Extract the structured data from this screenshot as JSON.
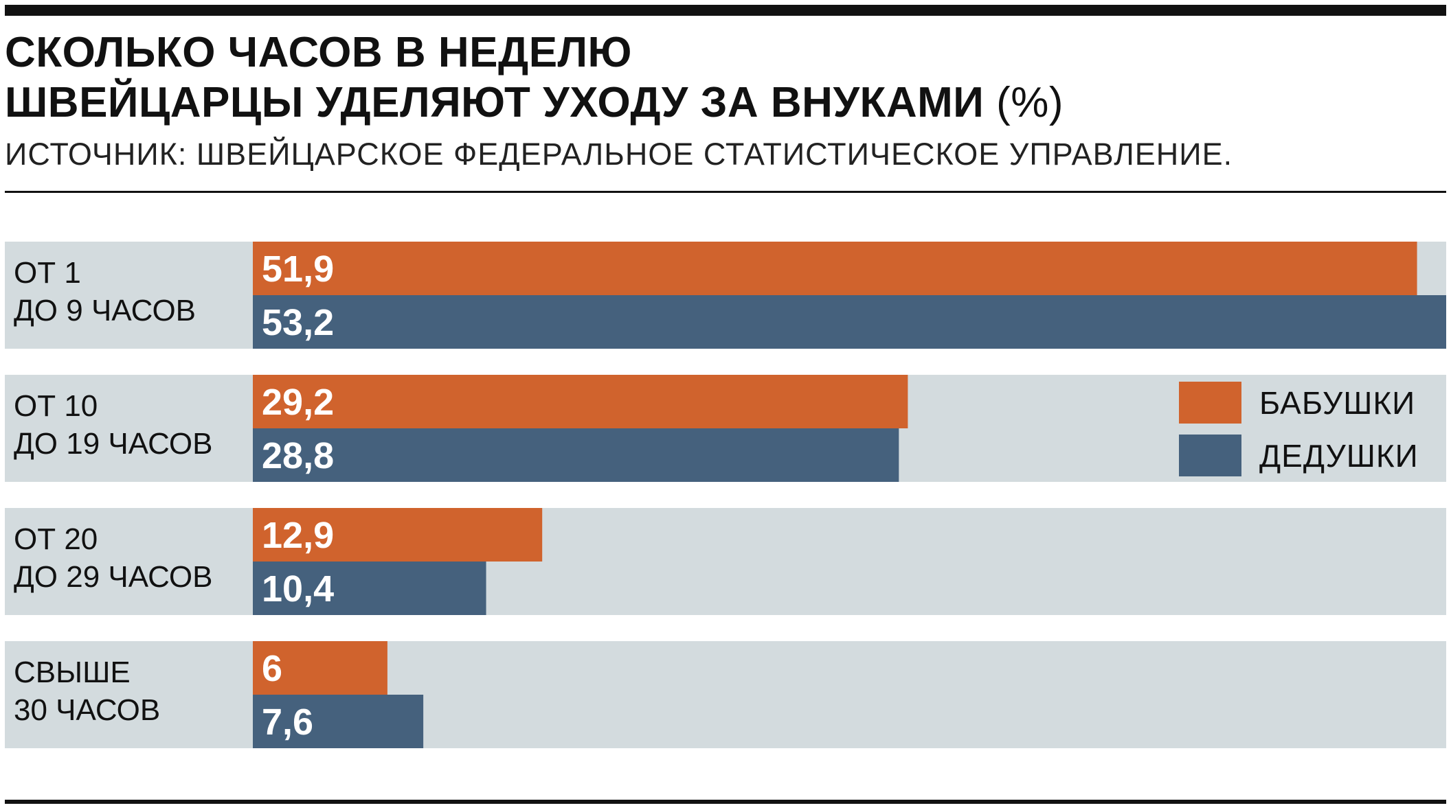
{
  "chart_data": {
    "type": "bar",
    "orientation": "horizontal",
    "title": {
      "line1": "СКОЛЬКО ЧАСОВ В НЕДЕЛЮ",
      "line2": "ШВЕЙЦАРЦЫ УДЕЛЯЮТ УХОДУ ЗА ВНУКАМИ",
      "unit": "(%)"
    },
    "source": "ИСТОЧНИК: ШВЕЙЦАРСКОЕ ФЕДЕРАЛЬНОЕ СТАТИСТИЧЕСКОЕ УПРАВЛЕНИЕ.",
    "categories": [
      [
        "ОТ 1",
        "ДО 9 ЧАСОВ"
      ],
      [
        "ОТ 10",
        "ДО 19 ЧАСОВ"
      ],
      [
        "ОТ 20",
        "ДО 29 ЧАСОВ"
      ],
      [
        "СВЫШЕ",
        "30 ЧАСОВ"
      ]
    ],
    "series": [
      {
        "name": "БАБУШКИ",
        "color": "#d0632d",
        "values": [
          51.9,
          29.2,
          12.9,
          6
        ],
        "labels": [
          "51,9",
          "29,2",
          "12,9",
          "6"
        ]
      },
      {
        "name": "ДЕДУШКИ",
        "color": "#45617d",
        "values": [
          53.2,
          28.8,
          10.4,
          7.6
        ],
        "labels": [
          "53,2",
          "28,8",
          "10,4",
          "7,6"
        ]
      }
    ],
    "xlim": [
      0,
      53.2
    ],
    "grid": false,
    "legend": "right",
    "row_background": "#d3dbde"
  }
}
